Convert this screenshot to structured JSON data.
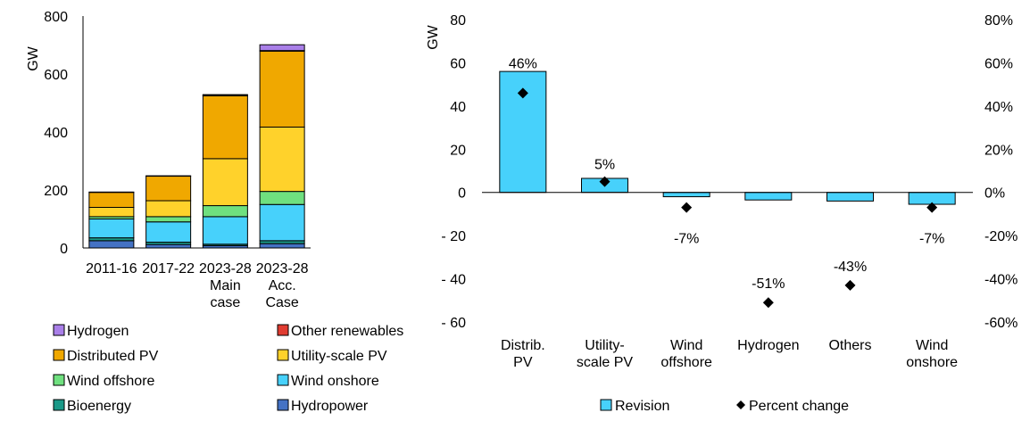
{
  "chart_data": [
    {
      "type": "stacked-bar",
      "ylabel": "GW",
      "ylim": [
        0,
        800
      ],
      "yticks": [
        "0",
        "200",
        "400",
        "600",
        "800"
      ],
      "categories": [
        [
          "2011-16"
        ],
        [
          "2017-22"
        ],
        [
          "2023-28",
          "Main",
          "case"
        ],
        [
          "2023-28",
          "Acc.",
          "Case"
        ]
      ],
      "series": [
        {
          "name": "Hydropower",
          "color": "#4472C4",
          "values": [
            25,
            12,
            8,
            15
          ]
        },
        {
          "name": "Bioenergy",
          "color": "#1A9988",
          "values": [
            10,
            8,
            5,
            10
          ]
        },
        {
          "name": "Wind onshore",
          "color": "#47D1FB",
          "values": [
            65,
            70,
            95,
            125
          ]
        },
        {
          "name": "Wind offshore",
          "color": "#6FE07F",
          "values": [
            8,
            18,
            38,
            45
          ]
        },
        {
          "name": "Utility-scale PV",
          "color": "#FFD22B",
          "values": [
            32,
            55,
            162,
            222
          ]
        },
        {
          "name": "Distributed PV",
          "color": "#F0A800",
          "values": [
            52,
            85,
            217,
            262
          ]
        },
        {
          "name": "Other renewables",
          "color": "#E03C31",
          "values": [
            1,
            1,
            2,
            2
          ]
        },
        {
          "name": "Hydrogen",
          "color": "#A97FE8",
          "values": [
            0,
            0,
            2,
            20
          ]
        }
      ],
      "legend_order": [
        "Hydrogen",
        "Other renewables",
        "Distributed PV",
        "Utility-scale PV",
        "Wind offshore",
        "Wind onshore",
        "Bioenergy",
        "Hydropower"
      ]
    },
    {
      "type": "bar+scatter",
      "ylabel": "GW",
      "ylim": [
        -60,
        80
      ],
      "yticks": [
        "- 60",
        "- 40",
        "- 20",
        "0",
        "20",
        "40",
        "60",
        "80"
      ],
      "y2lim": [
        -0.6,
        0.8
      ],
      "y2ticks": [
        "-60%",
        "-40%",
        "-20%",
        "0%",
        "20%",
        "40%",
        "60%",
        "80%"
      ],
      "categories": [
        [
          "Distrib.",
          "PV"
        ],
        [
          "Utility-",
          "scale PV"
        ],
        [
          "Wind",
          "offshore"
        ],
        [
          "Hydrogen"
        ],
        [
          "Others"
        ],
        [
          "Wind",
          "onshore"
        ]
      ],
      "series": [
        {
          "name": "Revision",
          "color": "#47D1FB",
          "values": [
            56,
            6.5,
            -2,
            -3.5,
            -4,
            -5.5
          ]
        },
        {
          "name": "Percent change",
          "color": "#000000",
          "values": [
            0.46,
            0.05,
            -0.07,
            -0.51,
            -0.43,
            -0.07
          ]
        }
      ],
      "data_labels": [
        "46%",
        "5%",
        "-7%",
        "-51%",
        "-43%",
        "-7%"
      ]
    }
  ]
}
